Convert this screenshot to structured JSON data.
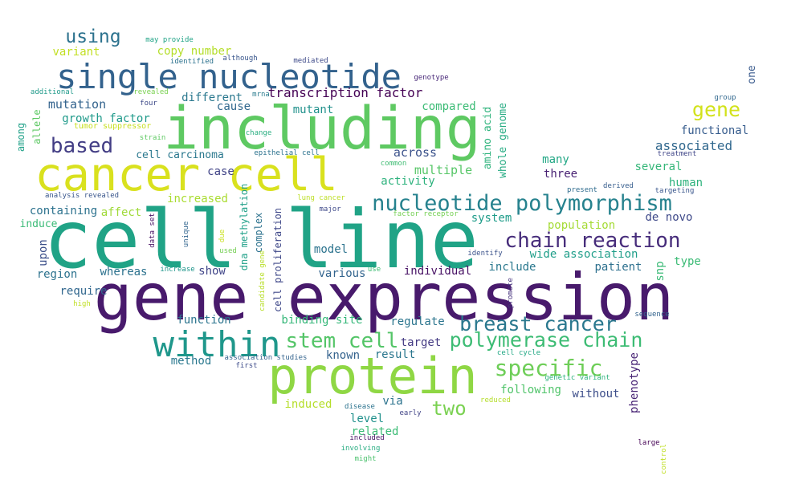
{
  "words": [
    {
      "text": "gene expression",
      "color": "#481a6c"
    },
    {
      "text": "cell line",
      "color": "#20a386"
    },
    {
      "text": "cancer cell",
      "color": "#d9e11e"
    },
    {
      "text": "including",
      "color": "#5ec962"
    },
    {
      "text": "protein",
      "color": "#8fd744"
    },
    {
      "text": "single nucleotide",
      "color": "#33628d"
    },
    {
      "text": "within",
      "color": "#1f978b"
    },
    {
      "text": "nucleotide polymorphism",
      "color": "#26828e"
    },
    {
      "text": "chain reaction",
      "color": "#472d7b"
    },
    {
      "text": "stem cell",
      "color": "#54c568"
    },
    {
      "text": "polymerase chain",
      "color": "#3dbc74"
    },
    {
      "text": "breast cancer",
      "color": "#2a788e"
    },
    {
      "text": "specific",
      "color": "#6ece58"
    },
    {
      "text": "based",
      "color": "#433e85"
    },
    {
      "text": "using",
      "color": "#2c728e"
    },
    {
      "text": "gene",
      "color": "#d2e21b"
    },
    {
      "text": "two",
      "color": "#7ad151"
    },
    {
      "text": "transcription factor",
      "color": "#440154"
    },
    {
      "text": "associated",
      "color": "#31688e"
    },
    {
      "text": "functional",
      "color": "#365c8d"
    },
    {
      "text": "mutation",
      "color": "#33638d"
    },
    {
      "text": "growth factor",
      "color": "#1f9a8a"
    },
    {
      "text": "copy number",
      "color": "#b5de2b"
    },
    {
      "text": "variant",
      "color": "#c2df23"
    },
    {
      "text": "different",
      "color": "#2a788e"
    },
    {
      "text": "cause",
      "color": "#31688e"
    },
    {
      "text": "mutant",
      "color": "#21918c"
    },
    {
      "text": "compared",
      "color": "#3bbb75"
    },
    {
      "text": "amino acid",
      "color": "#2eb37c"
    },
    {
      "text": "whole genome",
      "color": "#25ab82"
    },
    {
      "text": "across",
      "color": "#3b528b"
    },
    {
      "text": "multiple",
      "color": "#56c667"
    },
    {
      "text": "activity",
      "color": "#2db27d"
    },
    {
      "text": "many",
      "color": "#22a785"
    },
    {
      "text": "three",
      "color": "#482173"
    },
    {
      "text": "several",
      "color": "#35b779"
    },
    {
      "text": "human",
      "color": "#2db27d"
    },
    {
      "text": "cell carcinoma",
      "color": "#2a788e"
    },
    {
      "text": "case",
      "color": "#414487"
    },
    {
      "text": "increased",
      "color": "#aadc32"
    },
    {
      "text": "containing",
      "color": "#2c728e"
    },
    {
      "text": "affect",
      "color": "#a0da39"
    },
    {
      "text": "induce",
      "color": "#3aba76"
    },
    {
      "text": "system",
      "color": "#1e9c89"
    },
    {
      "text": "de novo",
      "color": "#3e4989"
    },
    {
      "text": "population",
      "color": "#a5db36"
    },
    {
      "text": "wide association",
      "color": "#1f9e89"
    },
    {
      "text": "include",
      "color": "#2a788e"
    },
    {
      "text": "patient",
      "color": "#2d708e"
    },
    {
      "text": "type",
      "color": "#3bbb75"
    },
    {
      "text": "snp",
      "color": "#3aba76"
    },
    {
      "text": "individual",
      "color": "#471164"
    },
    {
      "text": "model",
      "color": "#2c738e"
    },
    {
      "text": "various",
      "color": "#32648e"
    },
    {
      "text": "show",
      "color": "#404588"
    },
    {
      "text": "whereas",
      "color": "#2c728e"
    },
    {
      "text": "upon",
      "color": "#3c4f8a"
    },
    {
      "text": "region",
      "color": "#2c728e"
    },
    {
      "text": "require",
      "color": "#31678e"
    },
    {
      "text": "function",
      "color": "#2b748e"
    },
    {
      "text": "binding site",
      "color": "#35b779"
    },
    {
      "text": "regulate",
      "color": "#2b758e"
    },
    {
      "text": "target",
      "color": "#443a83"
    },
    {
      "text": "result",
      "color": "#2a768e"
    },
    {
      "text": "known",
      "color": "#33628d"
    },
    {
      "text": "method",
      "color": "#2a788e"
    },
    {
      "text": "following",
      "color": "#50c46a"
    },
    {
      "text": "via",
      "color": "#2c738e"
    },
    {
      "text": "without",
      "color": "#3d4e8a"
    },
    {
      "text": "phenotype",
      "color": "#482475"
    },
    {
      "text": "induced",
      "color": "#b5de2b"
    },
    {
      "text": "level",
      "color": "#21918c"
    },
    {
      "text": "related",
      "color": "#3bbb75"
    },
    {
      "text": "among",
      "color": "#1fa188"
    },
    {
      "text": "allele",
      "color": "#5cc863"
    },
    {
      "text": "one",
      "color": "#38598c"
    },
    {
      "text": "dna methylation",
      "color": "#1fa088"
    },
    {
      "text": "complex",
      "color": "#2c728e"
    },
    {
      "text": "cell proliferation",
      "color": "#3f4889"
    },
    {
      "text": "may provide",
      "color": "#20a386"
    },
    {
      "text": "identified",
      "color": "#2c728e"
    },
    {
      "text": "although",
      "color": "#39568c"
    },
    {
      "text": "mediated",
      "color": "#3e4a89"
    },
    {
      "text": "genotype",
      "color": "#482878"
    },
    {
      "text": "additional",
      "color": "#1f9a8a"
    },
    {
      "text": "revealed",
      "color": "#7ad151"
    },
    {
      "text": "mrna",
      "color": "#297b8e"
    },
    {
      "text": "four",
      "color": "#3e4a89"
    },
    {
      "text": "tumor suppressor",
      "color": "#c8e020"
    },
    {
      "text": "change",
      "color": "#28ae80"
    },
    {
      "text": "strain",
      "color": "#5ec962"
    },
    {
      "text": "epithelial cell",
      "color": "#2c728e"
    },
    {
      "text": "common",
      "color": "#3fbc73"
    },
    {
      "text": "analysis revealed",
      "color": "#39568c"
    },
    {
      "text": "lung cancer",
      "color": "#bddf26"
    },
    {
      "text": "major",
      "color": "#3e4989"
    },
    {
      "text": "factor receptor",
      "color": "#75d054"
    },
    {
      "text": "data set",
      "color": "#471063"
    },
    {
      "text": "unique",
      "color": "#32658e"
    },
    {
      "text": "due",
      "color": "#cae11f"
    },
    {
      "text": "used",
      "color": "#75d054"
    },
    {
      "text": "candidate gene",
      "color": "#b8de29"
    },
    {
      "text": "increase",
      "color": "#1f968b"
    },
    {
      "text": "use",
      "color": "#3fbc73"
    },
    {
      "text": "high",
      "color": "#c0df25"
    },
    {
      "text": "promote",
      "color": "#46327e"
    },
    {
      "text": "identify",
      "color": "#3b528b"
    },
    {
      "text": "group",
      "color": "#31688e"
    },
    {
      "text": "treatment",
      "color": "#404688"
    },
    {
      "text": "derived",
      "color": "#365d8d"
    },
    {
      "text": "present",
      "color": "#2f6c8e"
    },
    {
      "text": "targeting",
      "color": "#39568c"
    },
    {
      "text": "sequence",
      "color": "#33638d"
    },
    {
      "text": "association studies",
      "color": "#33638d"
    },
    {
      "text": "first",
      "color": "#3e4c8a"
    },
    {
      "text": "cell cycle",
      "color": "#22a884"
    },
    {
      "text": "genetic variant",
      "color": "#2db27d"
    },
    {
      "text": "reduced",
      "color": "#b5de2b"
    },
    {
      "text": "disease",
      "color": "#2c738e"
    },
    {
      "text": "early",
      "color": "#414487"
    },
    {
      "text": "included",
      "color": "#471164"
    },
    {
      "text": "involving",
      "color": "#27ad81"
    },
    {
      "text": "might",
      "color": "#4ac16d"
    },
    {
      "text": "large",
      "color": "#440154"
    },
    {
      "text": "control",
      "color": "#c0df25"
    }
  ]
}
